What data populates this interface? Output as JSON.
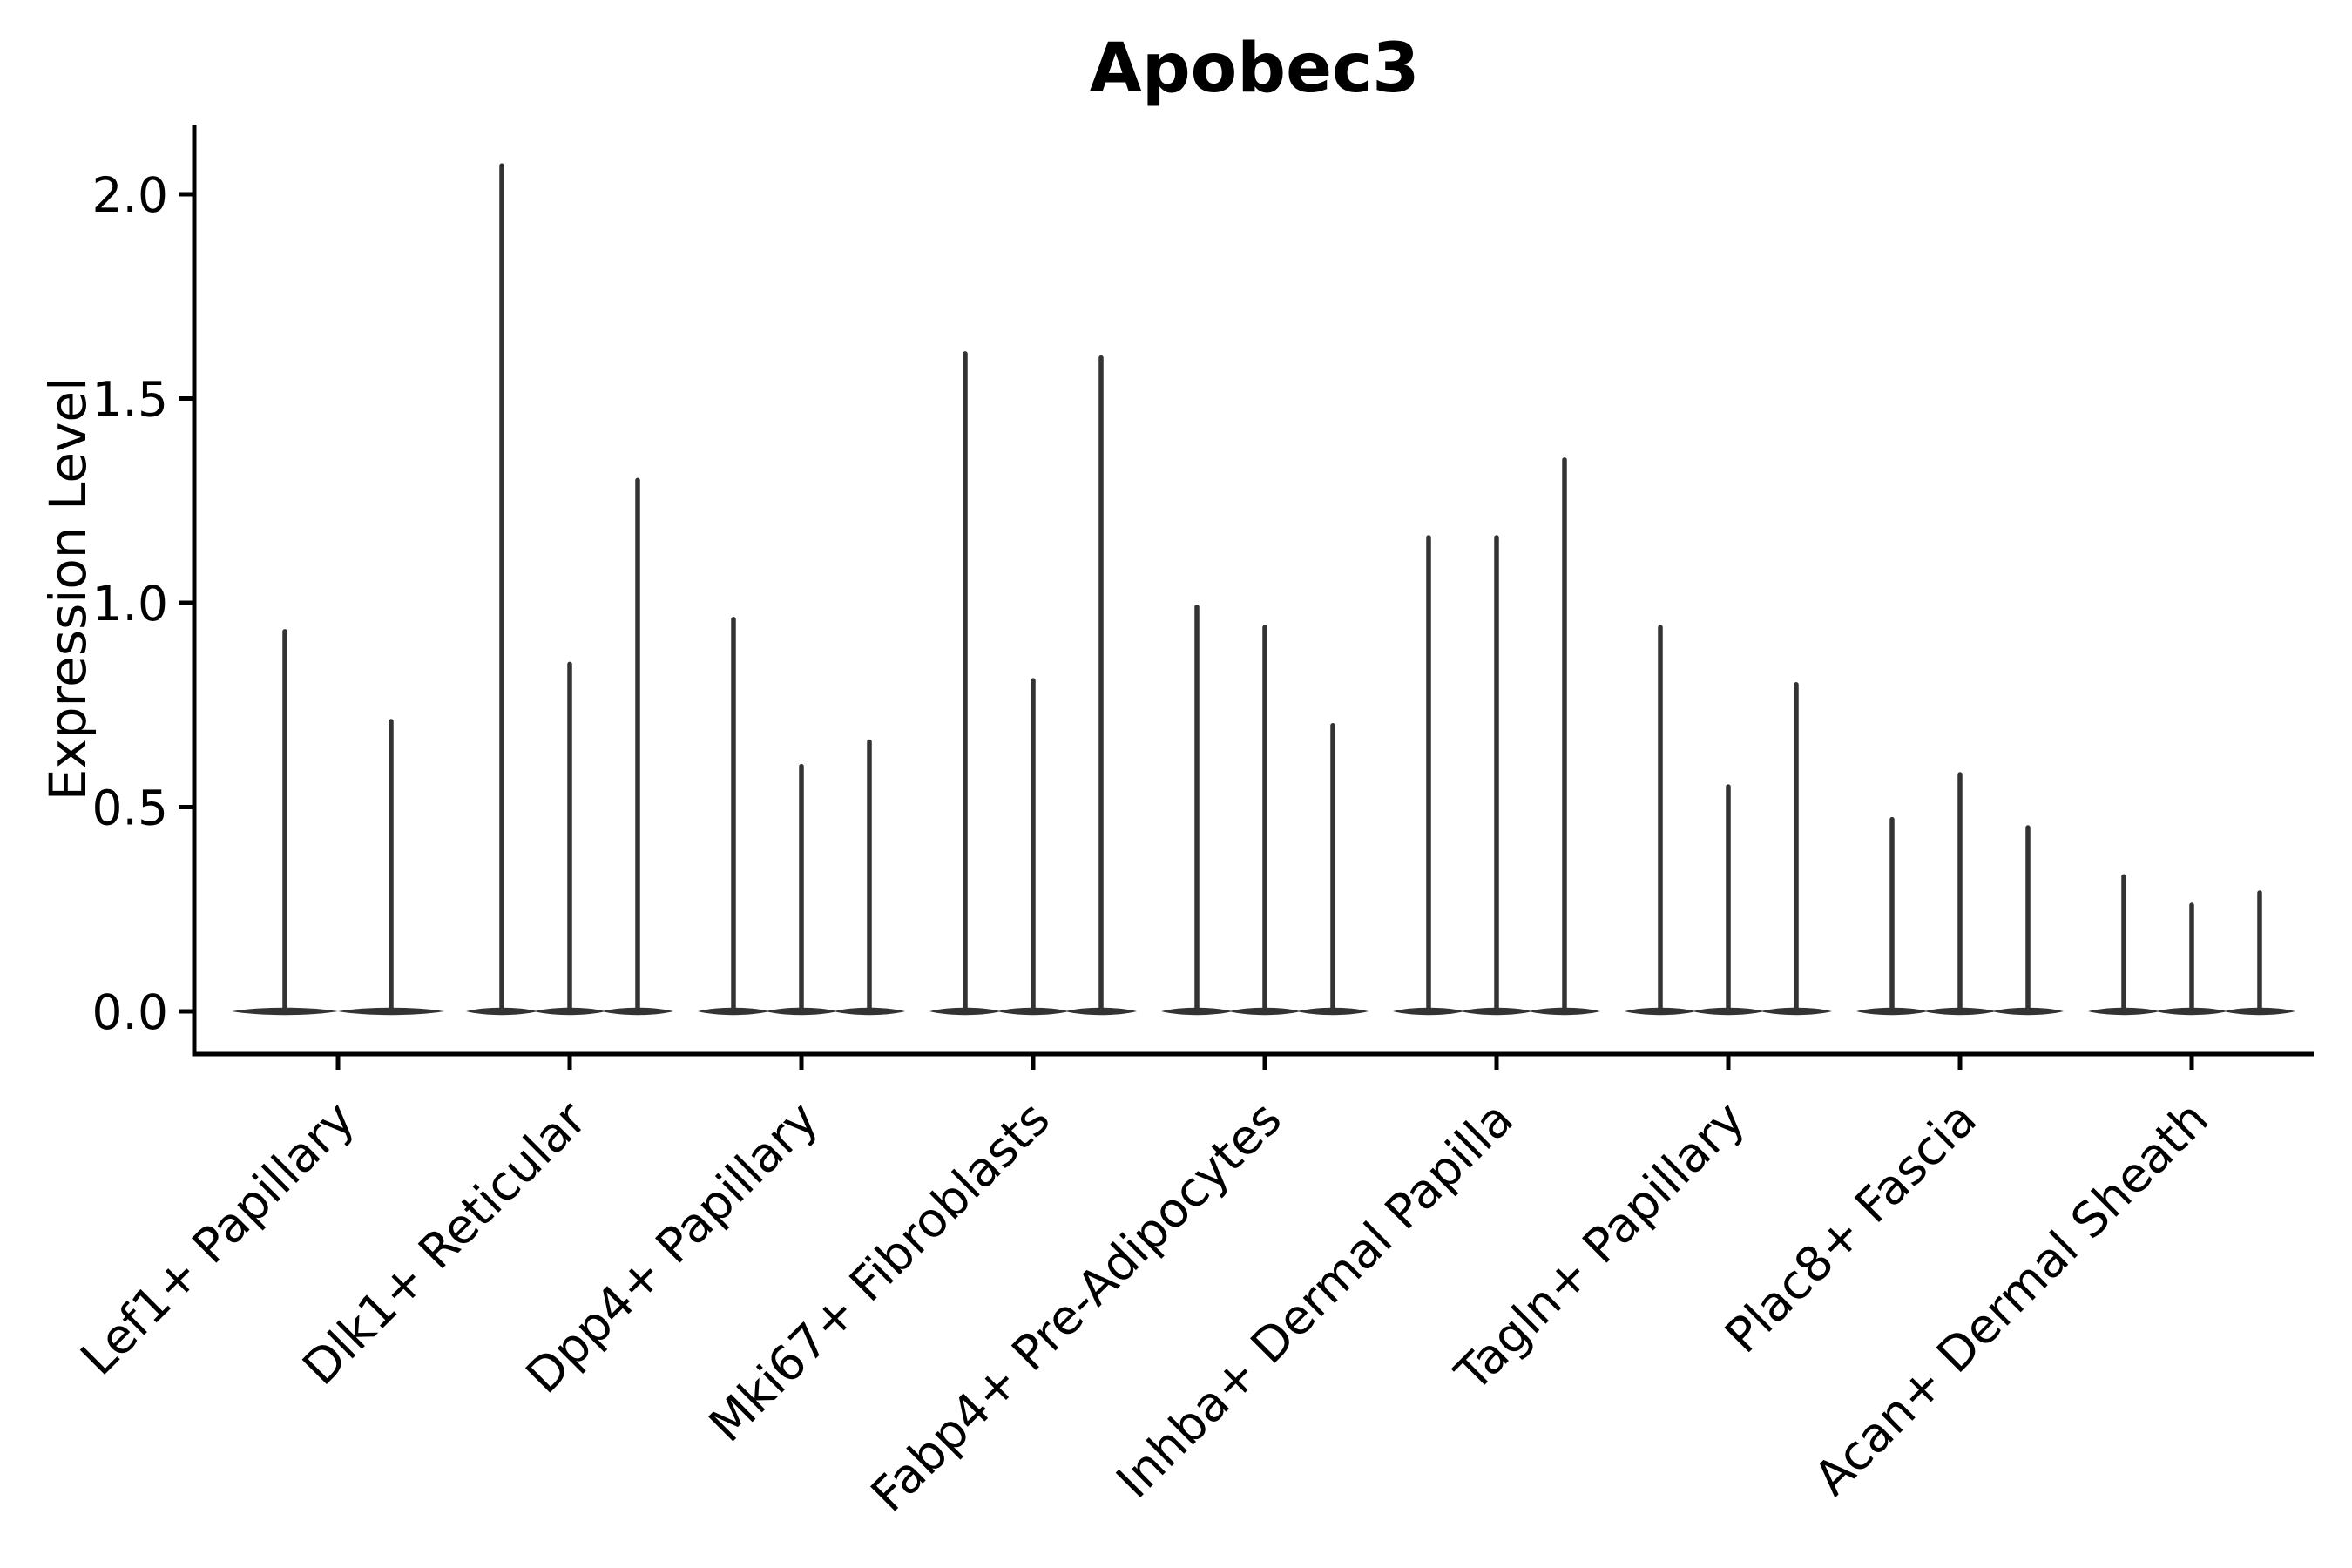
{
  "chart_data": {
    "type": "violin",
    "title": "Apobec3",
    "ylabel": "Expression Level",
    "xlabel": "",
    "yticks": [
      0.0,
      0.5,
      1.0,
      1.5,
      2.0
    ],
    "ytick_labels": [
      "0.0",
      "0.5",
      "1.0",
      "1.5",
      "2.0"
    ],
    "ylim": [
      -0.11,
      2.22
    ],
    "grid": false,
    "legend": "none",
    "baseline_value": 0.0,
    "categories": [
      "Lef1+ Papillary",
      "Dlk1+ Reticular",
      "Dpp4+ Papillary",
      "Mki67+ Fibroblasts",
      "Fabp4+ Pre-Adipocytes",
      "Inhba+ Dermal Papilla",
      "Tagln+ Papillary",
      "Plac8+ Fascia",
      "Acan+ Dermal Sheath"
    ],
    "series": [
      {
        "category": "Lef1+ Papillary",
        "violin_max_values": [
          0.93,
          0.71
        ]
      },
      {
        "category": "Dlk1+ Reticular",
        "violin_max_values": [
          2.07,
          0.85,
          1.3
        ]
      },
      {
        "category": "Dpp4+ Papillary",
        "violin_max_values": [
          0.96,
          0.6,
          0.66
        ]
      },
      {
        "category": "Mki67+ Fibroblasts",
        "violin_max_values": [
          1.61,
          0.81,
          1.6
        ]
      },
      {
        "category": "Fabp4+ Pre-Adipocytes",
        "violin_max_values": [
          0.99,
          0.94,
          0.7
        ]
      },
      {
        "category": "Inhba+ Dermal Papilla",
        "violin_max_values": [
          1.16,
          1.16,
          1.35
        ]
      },
      {
        "category": "Tagln+ Papillary",
        "violin_max_values": [
          0.94,
          0.55,
          0.8
        ]
      },
      {
        "category": "Plac8+ Fascia",
        "violin_max_values": [
          0.47,
          0.58,
          0.45
        ]
      },
      {
        "category": "Acan+ Dermal Sheath",
        "violin_max_values": [
          0.33,
          0.26,
          0.29
        ]
      }
    ],
    "colors": {
      "violin": "#333333",
      "axis": "#000000",
      "text": "#000000",
      "background": "#ffffff"
    }
  }
}
